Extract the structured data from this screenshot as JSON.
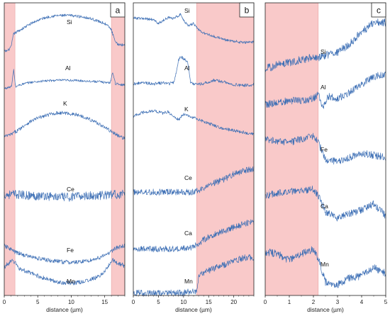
{
  "chart_data": [
    {
      "panel": "a",
      "type": "line",
      "xlabel": "distance (µm)",
      "xlim": [
        0,
        18
      ],
      "xticks": [
        "0",
        "5",
        "10",
        "15"
      ],
      "highlight_ranges": [
        [
          0,
          1.6
        ],
        [
          16,
          18
        ]
      ],
      "highlight_color": "#f9c9c9",
      "line_color": "#3d6fb5",
      "series": [
        {
          "name": "Si",
          "x": [
            0,
            0.5,
            1,
            1.4,
            2,
            3,
            4,
            5,
            6,
            7,
            8,
            9,
            10,
            11,
            12,
            13,
            14,
            15,
            15.6,
            16,
            16.6,
            17,
            18
          ],
          "values": [
            3,
            4,
            8,
            25,
            28,
            33,
            38,
            42,
            45,
            47,
            48,
            48,
            48,
            47,
            46,
            44,
            41,
            38,
            34,
            30,
            14,
            12,
            11
          ]
        },
        {
          "name": "Al",
          "x": [
            0,
            0.6,
            1.1,
            1.4,
            1.7,
            2,
            3,
            4,
            6,
            8,
            10,
            12,
            14,
            15,
            15.8,
            16.2,
            16.6,
            17,
            18
          ],
          "values": [
            12,
            13,
            15,
            40,
            14,
            16,
            19,
            21,
            23,
            24,
            24,
            23,
            22,
            21,
            20,
            36,
            19,
            18,
            17
          ]
        },
        {
          "name": "K",
          "x": [
            0,
            1,
            2,
            3,
            4,
            5,
            6,
            7,
            8,
            9,
            10,
            11,
            12,
            13,
            14,
            15,
            16,
            17,
            18
          ],
          "values": [
            18,
            20,
            24,
            29,
            33,
            36,
            38,
            40,
            41,
            41,
            40,
            39,
            37,
            34,
            31,
            27,
            23,
            19,
            16
          ]
        },
        {
          "name": "Ce",
          "x": [
            0,
            2,
            4,
            6,
            8,
            10,
            12,
            14,
            16,
            18
          ],
          "values": [
            30,
            30,
            29,
            29,
            28,
            28,
            29,
            29,
            30,
            30
          ]
        },
        {
          "name": "Fe",
          "x": [
            0,
            0.8,
            1.6,
            3,
            5,
            7,
            9,
            10,
            11,
            13,
            15,
            15.8,
            16.5,
            17.2,
            18
          ],
          "values": [
            40,
            36,
            30,
            25,
            20,
            16,
            14,
            13,
            14,
            17,
            24,
            30,
            36,
            38,
            40
          ]
        },
        {
          "name": "Mn",
          "x": [
            0,
            0.6,
            1.2,
            1.6,
            2.2,
            4,
            6,
            8,
            10,
            12,
            14,
            15,
            15.6,
            16.2,
            17,
            18
          ],
          "values": [
            40,
            46,
            50,
            48,
            38,
            30,
            22,
            16,
            14,
            17,
            24,
            33,
            42,
            52,
            46,
            42
          ]
        }
      ]
    },
    {
      "panel": "b",
      "type": "line",
      "xlabel": "distance (µm)",
      "xlim": [
        0,
        24
      ],
      "xticks": [
        "0",
        "5",
        "10",
        "15",
        "20"
      ],
      "highlight_ranges": [
        [
          12.6,
          24
        ]
      ],
      "highlight_color": "#f9c9c9",
      "line_color": "#3d6fb5",
      "series": [
        {
          "name": "Si",
          "x": [
            0,
            2,
            4,
            5,
            6,
            7,
            8,
            9,
            9.5,
            10,
            11,
            12,
            13,
            14,
            16,
            18,
            20,
            22,
            24
          ],
          "values": [
            45,
            44,
            43,
            38,
            42,
            46,
            44,
            48,
            50,
            42,
            35,
            38,
            30,
            26,
            22,
            18,
            16,
            14,
            15
          ]
        },
        {
          "name": "Al",
          "x": [
            0,
            2,
            4,
            6,
            7,
            8,
            8.6,
            9,
            9.5,
            10,
            10.8,
            11.4,
            12,
            14,
            16,
            18,
            20,
            22,
            24
          ],
          "values": [
            14,
            15,
            14,
            15,
            14,
            15,
            28,
            40,
            44,
            42,
            38,
            16,
            14,
            14,
            18,
            16,
            13,
            12,
            13
          ]
        },
        {
          "name": "K",
          "x": [
            0,
            2,
            4,
            6,
            7,
            8,
            9,
            10,
            11,
            12,
            13,
            14,
            16,
            18,
            20,
            22,
            24
          ],
          "values": [
            30,
            34,
            36,
            33,
            35,
            29,
            26,
            32,
            30,
            28,
            26,
            24,
            20,
            16,
            14,
            12,
            10
          ]
        },
        {
          "name": "Ce",
          "x": [
            0,
            4,
            8,
            12,
            13,
            14,
            16,
            18,
            20,
            22,
            24
          ],
          "values": [
            14,
            14,
            14,
            14,
            16,
            18,
            24,
            28,
            34,
            38,
            40
          ]
        },
        {
          "name": "Ca",
          "x": [
            0,
            4,
            8,
            10,
            12,
            13,
            14,
            16,
            18,
            20,
            22,
            24
          ],
          "values": [
            10,
            10,
            10,
            11,
            12,
            16,
            20,
            26,
            30,
            34,
            38,
            40
          ]
        },
        {
          "name": "Mn",
          "x": [
            0,
            4,
            8,
            10,
            11,
            12,
            12.6,
            13,
            14,
            16,
            18,
            20,
            22,
            24
          ],
          "values": [
            2,
            2,
            2,
            2,
            3,
            3,
            4,
            20,
            24,
            28,
            32,
            36,
            40,
            40
          ]
        }
      ]
    },
    {
      "panel": "c",
      "type": "line",
      "xlabel": "distance (µm)",
      "xlim": [
        0,
        5
      ],
      "xticks": [
        "0",
        "1",
        "2",
        "3",
        "4",
        "5"
      ],
      "highlight_ranges": [
        [
          0,
          2.2
        ]
      ],
      "highlight_color": "#f9c9c9",
      "line_color": "#3d6fb5",
      "series": [
        {
          "name": "Si",
          "x": [
            0,
            0.5,
            1,
            1.5,
            2,
            2.2,
            2.5,
            3,
            3.5,
            4,
            4.5,
            5
          ],
          "values": [
            10,
            14,
            16,
            18,
            20,
            20,
            22,
            24,
            32,
            42,
            50,
            50
          ]
        },
        {
          "name": "Al",
          "x": [
            0,
            0.5,
            1,
            1.5,
            2,
            2.2,
            2.4,
            2.6,
            3,
            3.5,
            4,
            4.5,
            5
          ],
          "values": [
            18,
            20,
            22,
            22,
            24,
            28,
            14,
            26,
            24,
            30,
            38,
            45,
            48
          ]
        },
        {
          "name": "Fe",
          "x": [
            0,
            0.5,
            1,
            1.5,
            2,
            2.2,
            2.5,
            3,
            3.5,
            4,
            4.5,
            5
          ],
          "values": [
            40,
            38,
            36,
            40,
            42,
            36,
            20,
            18,
            22,
            26,
            24,
            22
          ]
        },
        {
          "name": "Ca",
          "x": [
            0,
            0.5,
            1,
            1.5,
            2,
            2.2,
            2.5,
            3,
            3.5,
            4,
            4.5,
            5
          ],
          "values": [
            40,
            42,
            44,
            45,
            46,
            40,
            24,
            18,
            22,
            26,
            32,
            20
          ]
        },
        {
          "name": "Mn",
          "x": [
            0,
            0.5,
            1,
            1.5,
            2,
            2.2,
            2.5,
            3,
            3.5,
            4,
            4.5,
            5
          ],
          "values": [
            38,
            36,
            30,
            36,
            40,
            32,
            10,
            8,
            14,
            16,
            24,
            18
          ]
        }
      ]
    }
  ]
}
